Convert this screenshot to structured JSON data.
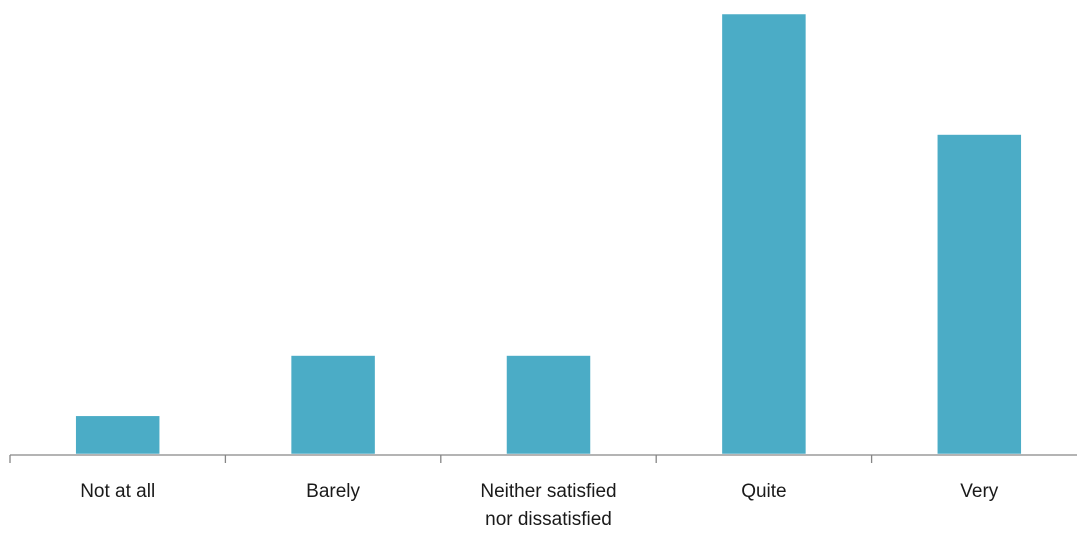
{
  "chart_data": {
    "type": "bar",
    "title": "",
    "xlabel": "",
    "ylabel": "",
    "categories": [
      [
        "Not at all"
      ],
      [
        "Barely"
      ],
      [
        "Neither satisfied",
        "nor dissatisfied"
      ],
      [
        "Quite"
      ],
      [
        "Very"
      ]
    ],
    "values": [
      1,
      2.5,
      2.5,
      11,
      8
    ],
    "ylim": [
      0,
      11
    ],
    "grid": false,
    "legend": "none",
    "bar_color": "#4bacc6",
    "axis_color": "#868686"
  }
}
